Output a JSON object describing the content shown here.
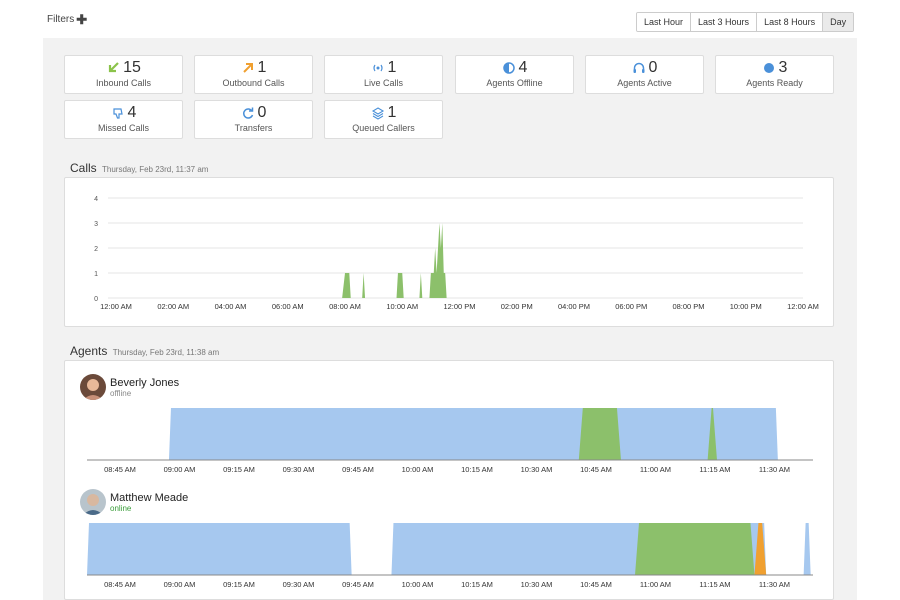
{
  "toolbar": {
    "filters_label": "Filters",
    "ranges": [
      "Last Hour",
      "Last 3 Hours",
      "Last 8 Hours",
      "Day"
    ],
    "active_range": "Day"
  },
  "stats": [
    {
      "value": "15",
      "label": "Inbound Calls",
      "icon": "inbound-arrow-icon",
      "color": "#8bc34a"
    },
    {
      "value": "1",
      "label": "Outbound Calls",
      "icon": "outbound-arrow-icon",
      "color": "#f0a030"
    },
    {
      "value": "1",
      "label": "Live Calls",
      "icon": "live-signal-icon",
      "color": "#4a90d9"
    },
    {
      "value": "4",
      "label": "Agents Offline",
      "icon": "half-circle-icon",
      "color": "#4a90d9"
    },
    {
      "value": "0",
      "label": "Agents Active",
      "icon": "headset-icon",
      "color": "#4a90d9"
    },
    {
      "value": "3",
      "label": "Agents Ready",
      "icon": "dot-icon",
      "color": "#4a90d9"
    },
    {
      "value": "4",
      "label": "Missed Calls",
      "icon": "thumbs-down-icon",
      "color": "#4a90d9"
    },
    {
      "value": "0",
      "label": "Transfers",
      "icon": "transfer-icon",
      "color": "#4a90d9"
    },
    {
      "value": "1",
      "label": "Queued Callers",
      "icon": "layers-icon",
      "color": "#4a90d9"
    }
  ],
  "calls_section": {
    "title": "Calls",
    "subtitle": "Thursday, Feb 23rd, 11:37 am"
  },
  "agents_section": {
    "title": "Agents",
    "subtitle": "Thursday, Feb 23rd, 11:38 am"
  },
  "agents": [
    {
      "name": "Beverly Jones",
      "status": "offline"
    },
    {
      "name": "Matthew Meade",
      "status": "online"
    }
  ],
  "colors": {
    "calls": "#8cc06b",
    "ready": "#a6c8ef",
    "active": "#8cc06b",
    "other": "#f0a030"
  },
  "chart_data": [
    {
      "type": "area",
      "title": "Calls",
      "x_ticks": [
        "12:00 AM",
        "02:00 AM",
        "04:00 AM",
        "06:00 AM",
        "08:00 AM",
        "10:00 AM",
        "12:00 PM",
        "02:00 PM",
        "04:00 PM",
        "06:00 PM",
        "08:00 PM",
        "10:00 PM",
        "12:00 AM"
      ],
      "y_ticks": [
        "0",
        "1",
        "2",
        "3",
        "4"
      ],
      "ylim": [
        0,
        4
      ],
      "xlim_hours": [
        0,
        24
      ],
      "series": [
        {
          "points": [
            [
              7.9,
              0
            ],
            [
              8.0,
              1
            ],
            [
              8.15,
              1
            ],
            [
              8.2,
              0
            ],
            [
              8.6,
              0
            ],
            [
              8.65,
              1
            ],
            [
              8.7,
              0
            ],
            [
              9.8,
              0
            ],
            [
              9.85,
              1
            ],
            [
              10.0,
              1
            ],
            [
              10.05,
              0
            ],
            [
              10.6,
              0
            ],
            [
              10.65,
              1
            ],
            [
              10.7,
              0
            ],
            [
              10.95,
              0
            ],
            [
              11.0,
              1
            ],
            [
              11.1,
              1
            ],
            [
              11.15,
              2
            ],
            [
              11.2,
              1
            ],
            [
              11.3,
              3
            ],
            [
              11.35,
              2
            ],
            [
              11.4,
              3
            ],
            [
              11.45,
              1
            ],
            [
              11.5,
              1
            ],
            [
              11.55,
              0
            ]
          ]
        }
      ]
    },
    {
      "type": "area",
      "title": "Beverly Jones",
      "x_ticks": [
        "08:45 AM",
        "09:00 AM",
        "09:15 AM",
        "09:30 AM",
        "09:45 AM",
        "10:00 AM",
        "10:15 AM",
        "10:30 AM",
        "10:45 AM",
        "11:00 AM",
        "11:15 AM",
        "11:30 AM"
      ],
      "series": [
        {
          "name": "ready",
          "segments": [
            [
              9.0,
              11.6
            ]
          ]
        },
        {
          "name": "active",
          "segments": [
            [
              10.75,
              10.93
            ],
            [
              11.3,
              11.34
            ]
          ]
        }
      ]
    },
    {
      "type": "area",
      "title": "Matthew Meade",
      "x_ticks": [
        "08:45 AM",
        "09:00 AM",
        "09:15 AM",
        "09:30 AM",
        "09:45 AM",
        "10:00 AM",
        "10:15 AM",
        "10:30 AM",
        "10:45 AM",
        "11:00 AM",
        "11:15 AM",
        "11:30 AM"
      ],
      "series": [
        {
          "name": "ready",
          "segments": [
            [
              8.65,
              9.78
            ],
            [
              9.95,
              11.55
            ],
            [
              11.71,
              11.74
            ]
          ]
        },
        {
          "name": "active",
          "segments": [
            [
              10.99,
              11.5
            ]
          ]
        },
        {
          "name": "other",
          "segments": [
            [
              11.5,
              11.55
            ]
          ]
        }
      ]
    }
  ]
}
